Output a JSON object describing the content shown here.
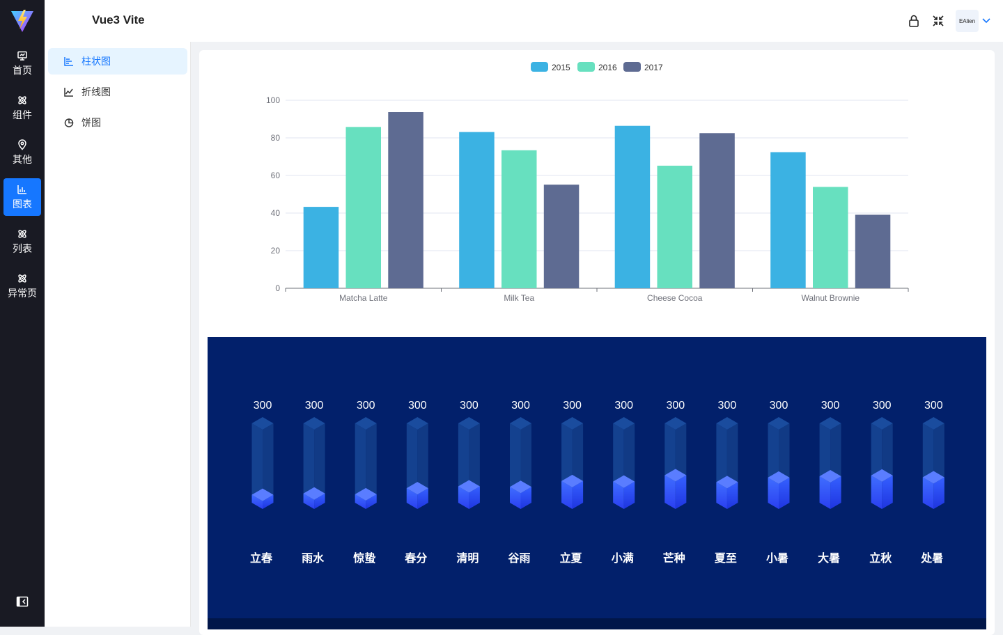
{
  "app": {
    "title": "Vue3 Vite",
    "user_name": "EAlien"
  },
  "nav": {
    "items": [
      {
        "label": "首页",
        "icon": "monitor-icon",
        "active": false
      },
      {
        "label": "组件",
        "icon": "atom-icon",
        "active": false
      },
      {
        "label": "其他",
        "icon": "location-pin-icon",
        "active": false
      },
      {
        "label": "图表",
        "icon": "bar-chart-icon",
        "active": true
      },
      {
        "label": "列表",
        "icon": "atom-icon",
        "active": false
      },
      {
        "label": "异常页",
        "icon": "atom-icon",
        "active": false
      }
    ]
  },
  "submenu": {
    "items": [
      {
        "label": "柱状图",
        "icon": "bar-chart-horizontal-icon",
        "active": true
      },
      {
        "label": "折线图",
        "icon": "line-chart-icon",
        "active": false
      },
      {
        "label": "饼图",
        "icon": "pie-chart-icon",
        "active": false
      }
    ]
  },
  "colors": {
    "accent": "#1677ff",
    "rail_bg": "#191a23",
    "panel_bg": "#02206b"
  },
  "chart_data": [
    {
      "type": "bar",
      "categories": [
        "Matcha Latte",
        "Milk Tea",
        "Cheese Cocoa",
        "Walnut Brownie"
      ],
      "series": [
        {
          "name": "2015",
          "color": "#3bb2e3",
          "values": [
            43.3,
            83.1,
            86.4,
            72.4
          ]
        },
        {
          "name": "2016",
          "color": "#67e0bf",
          "values": [
            85.8,
            73.4,
            65.2,
            53.9
          ]
        },
        {
          "name": "2017",
          "color": "#5e6b92",
          "values": [
            93.7,
            55.1,
            82.5,
            39.1
          ]
        }
      ],
      "ylim": [
        0,
        100
      ],
      "yticks": [
        0,
        20,
        40,
        60,
        80,
        100
      ],
      "legend": "top-center",
      "grid": true
    },
    {
      "type": "bar",
      "style": "3d-cylinder",
      "categories": [
        "立春",
        "雨水",
        "惊蛰",
        "春分",
        "清明",
        "谷雨",
        "立夏",
        "小满",
        "芒种",
        "夏至",
        "小暑",
        "大暑",
        "立秋",
        "处暑"
      ],
      "max_labels": [
        "300",
        "300",
        "300",
        "300",
        "300",
        "300",
        "300",
        "300",
        "300",
        "300",
        "300",
        "300",
        "300",
        "300"
      ],
      "max": 300,
      "values": [
        30,
        35,
        32,
        55,
        62,
        60,
        82,
        80,
        104,
        78,
        95,
        100,
        103,
        96
      ]
    }
  ]
}
